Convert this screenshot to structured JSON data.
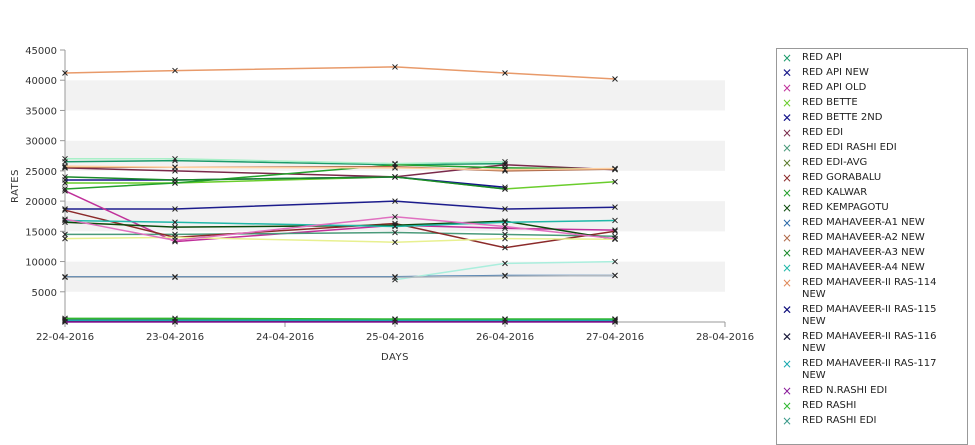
{
  "chart_data": {
    "type": "line",
    "xlabel": "DAYS",
    "ylabel": "RATES",
    "x_ticks": [
      "22-04-2016",
      "23-04-2016",
      "24-04-2016",
      "25-04-2016",
      "26-04-2016",
      "27-04-2016",
      "28-04-2016"
    ],
    "y_ticks": [
      5000,
      10000,
      15000,
      20000,
      25000,
      30000,
      35000,
      40000,
      45000
    ],
    "ylim": [
      0,
      45000
    ],
    "grid": "alternating horizontal bands",
    "legend_position": "right",
    "series": [
      {
        "name": "RED API",
        "color": "#1a9a6a",
        "points": [
          [
            0,
            26500
          ],
          [
            1,
            26700
          ],
          [
            3,
            26000
          ],
          [
            4,
            26200
          ]
        ]
      },
      {
        "name": "RED API NEW",
        "color": "#1c1c8c",
        "points": [
          [
            0,
            18700
          ],
          [
            1,
            18700
          ],
          [
            3,
            20000
          ],
          [
            4,
            18700
          ],
          [
            5,
            19000
          ]
        ]
      },
      {
        "name": "RED API OLD",
        "color": "#c0309a",
        "points": [
          [
            0,
            21700
          ],
          [
            1,
            13300
          ],
          [
            3,
            16000
          ],
          [
            4,
            15500
          ],
          [
            5,
            15200
          ]
        ]
      },
      {
        "name": "RED BETTE",
        "color": "#6acd2c",
        "points": [
          [
            0,
            23000
          ],
          [
            1,
            23000
          ],
          [
            3,
            24000
          ],
          [
            4,
            22000
          ],
          [
            5,
            23200
          ]
        ]
      },
      {
        "name": "RED BETTE 2ND",
        "color": "#14148a",
        "points": [
          [
            0,
            23500
          ],
          [
            1,
            23500
          ],
          [
            3,
            24000
          ],
          [
            4,
            22300
          ]
        ]
      },
      {
        "name": "RED EDI",
        "color": "#7a2a4a",
        "points": [
          [
            0,
            25500
          ],
          [
            1,
            25000
          ],
          [
            3,
            24000
          ],
          [
            4,
            26000
          ],
          [
            5,
            25200
          ]
        ]
      },
      {
        "name": "RED EDI RASHI EDI",
        "color": "#4a9a7a",
        "points": [
          [
            0,
            14500
          ],
          [
            1,
            14500
          ],
          [
            3,
            14800
          ],
          [
            4,
            14500
          ],
          [
            5,
            14200
          ]
        ]
      },
      {
        "name": "RED EDI-AVG",
        "color": "#5a7a2a",
        "points": [
          [
            0,
            400
          ],
          [
            1,
            400
          ],
          [
            3,
            400
          ],
          [
            4,
            400
          ],
          [
            5,
            400
          ]
        ]
      },
      {
        "name": "RED GORABALU",
        "color": "#8b2a2a",
        "points": [
          [
            0,
            18500
          ],
          [
            1,
            14000
          ],
          [
            3,
            16300
          ],
          [
            4,
            12300
          ],
          [
            5,
            15000
          ]
        ]
      },
      {
        "name": "RED KALWAR",
        "color": "#24a02c",
        "points": [
          [
            0,
            22000
          ],
          [
            1,
            23000
          ],
          [
            3,
            26000
          ],
          [
            4,
            25500
          ],
          [
            5,
            25300
          ]
        ]
      },
      {
        "name": "RED KEMPAGOTU",
        "color": "#0c4a0c",
        "points": [
          [
            0,
            16500
          ],
          [
            1,
            15700
          ],
          [
            3,
            16000
          ],
          [
            4,
            16700
          ],
          [
            5,
            13700
          ]
        ]
      },
      {
        "name": "RED MAHAVEER-A1 NEW",
        "color": "#2a6aaa",
        "points": [
          [
            0,
            7500
          ],
          [
            1,
            7500
          ],
          [
            3,
            7500
          ],
          [
            4,
            7700
          ],
          [
            5,
            7700
          ]
        ]
      },
      {
        "name": "RED MAHAVEER-A2 NEW",
        "color": "#b06a4a",
        "points": [
          [
            0,
            25600
          ],
          [
            1,
            25600
          ],
          [
            3,
            25700
          ],
          [
            4,
            25000
          ],
          [
            5,
            25300
          ]
        ]
      },
      {
        "name": "RED MAHAVEER-A3 NEW",
        "color": "#1a8a2a",
        "points": [
          [
            0,
            24000
          ],
          [
            1,
            23500
          ],
          [
            3,
            24000
          ],
          [
            4,
            22000
          ]
        ]
      },
      {
        "name": "RED MAHAVEER-A4 NEW",
        "color": "#20b8a8",
        "points": [
          [
            0,
            16800
          ],
          [
            1,
            16500
          ],
          [
            3,
            15800
          ],
          [
            4,
            16500
          ],
          [
            5,
            16800
          ]
        ]
      },
      {
        "name": "RED MAHAVEER-II RAS-114 NEW",
        "color": "#e89a6a",
        "points": [
          [
            0,
            41200
          ],
          [
            1,
            41600
          ],
          [
            3,
            42200
          ],
          [
            4,
            41200
          ],
          [
            5,
            40200
          ]
        ]
      },
      {
        "name": "RED MAHAVEER-II RAS-115 NEW",
        "color": "#0c0c7a",
        "points": [
          [
            0,
            100
          ],
          [
            1,
            100
          ],
          [
            3,
            100
          ],
          [
            4,
            100
          ],
          [
            5,
            100
          ]
        ]
      },
      {
        "name": "RED MAHAVEER-II RAS-116 NEW",
        "color": "#1a1a3a",
        "points": [
          [
            0,
            200
          ],
          [
            1,
            200
          ],
          [
            3,
            200
          ],
          [
            4,
            200
          ],
          [
            5,
            200
          ]
        ]
      },
      {
        "name": "RED MAHAVEER-II RAS-117 NEW",
        "color": "#1aa8b0",
        "points": [
          [
            0,
            300
          ],
          [
            1,
            300
          ],
          [
            3,
            300
          ],
          [
            4,
            300
          ],
          [
            5,
            300
          ]
        ]
      },
      {
        "name": "RED N.RASHI EDI",
        "color": "#8a1a9a",
        "points": [
          [
            0,
            0
          ],
          [
            1,
            0
          ],
          [
            3,
            0
          ],
          [
            4,
            0
          ],
          [
            5,
            0
          ]
        ]
      },
      {
        "name": "RED RASHI",
        "color": "#30b830",
        "points": [
          [
            0,
            600
          ],
          [
            1,
            600
          ],
          [
            3,
            500
          ],
          [
            4,
            500
          ],
          [
            5,
            500
          ]
        ]
      },
      {
        "name": "RED RASHI EDI",
        "color": "#aaeedd",
        "points": [
          [
            3,
            7000
          ],
          [
            4,
            9700
          ],
          [
            5,
            10000
          ]
        ]
      },
      {
        "name": "",
        "color": "#e8f090",
        "points": [
          [
            0,
            13800
          ],
          [
            1,
            14000
          ],
          [
            3,
            13200
          ],
          [
            4,
            13800
          ],
          [
            5,
            13700
          ]
        ]
      },
      {
        "name": "",
        "color": "#a8f0c8",
        "points": [
          [
            0,
            27000
          ],
          [
            1,
            27000
          ],
          [
            3,
            26200
          ],
          [
            4,
            26500
          ]
        ]
      },
      {
        "name": "",
        "color": "#ffd0a0",
        "points": [
          [
            0,
            25800
          ],
          [
            1,
            25600
          ],
          [
            3,
            25500
          ],
          [
            4,
            25200
          ],
          [
            5,
            25400
          ]
        ]
      },
      {
        "name": "",
        "color": "#e070c0",
        "points": [
          [
            0,
            17000
          ],
          [
            1,
            13500
          ],
          [
            3,
            17400
          ],
          [
            4,
            15800
          ],
          [
            5,
            13800
          ]
        ]
      },
      {
        "name": "",
        "color": "#b0b8c0",
        "points": [
          [
            0,
            7400
          ],
          [
            1,
            7400
          ],
          [
            3,
            7400
          ],
          [
            4,
            7600
          ],
          [
            5,
            7700
          ]
        ]
      }
    ]
  },
  "legend": {
    "items": [
      {
        "label": "RED API",
        "color": "#1a9a6a",
        "marker": "×"
      },
      {
        "label": "RED API NEW",
        "color": "#1c1c8c",
        "marker": "✕"
      },
      {
        "label": "RED API OLD",
        "color": "#c0309a",
        "marker": "×"
      },
      {
        "label": "RED BETTE",
        "color": "#6acd2c",
        "marker": "×"
      },
      {
        "label": "RED BETTE 2ND",
        "color": "#14148a",
        "marker": "✕"
      },
      {
        "label": "RED EDI",
        "color": "#7a2a4a",
        "marker": "×"
      },
      {
        "label": "RED EDI RASHI EDI",
        "color": "#4a9a7a",
        "marker": "×"
      },
      {
        "label": "RED EDI-AVG",
        "color": "#5a7a2a",
        "marker": "×"
      },
      {
        "label": "RED GORABALU",
        "color": "#8b2a2a",
        "marker": "×"
      },
      {
        "label": "RED KALWAR",
        "color": "#24a02c",
        "marker": "×"
      },
      {
        "label": "RED KEMPAGOTU",
        "color": "#0c4a0c",
        "marker": "×"
      },
      {
        "label": "RED MAHAVEER-A1 NEW",
        "color": "#2a6aaa",
        "marker": "×"
      },
      {
        "label": "RED MAHAVEER-A2 NEW",
        "color": "#b06a4a",
        "marker": "×"
      },
      {
        "label": "RED MAHAVEER-A3 NEW",
        "color": "#1a8a2a",
        "marker": "×"
      },
      {
        "label": "RED MAHAVEER-A4 NEW",
        "color": "#20b8a8",
        "marker": "×"
      },
      {
        "label": "RED MAHAVEER-II RAS-114 NEW",
        "color": "#e08a5a",
        "marker": "×"
      },
      {
        "label": "RED MAHAVEER-II RAS-115 NEW",
        "color": "#0c0c7a",
        "marker": "✕"
      },
      {
        "label": "RED MAHAVEER-II RAS-116 NEW",
        "color": "#1a1a3a",
        "marker": "✕"
      },
      {
        "label": "RED MAHAVEER-II RAS-117 NEW",
        "color": "#1aa8b0",
        "marker": "×"
      },
      {
        "label": "RED N.RASHI EDI",
        "color": "#8a1a9a",
        "marker": "×"
      },
      {
        "label": "RED RASHI",
        "color": "#30b830",
        "marker": "×"
      },
      {
        "label": "RED RASHI EDI",
        "color": "#3a9a8a",
        "marker": "×"
      }
    ]
  }
}
